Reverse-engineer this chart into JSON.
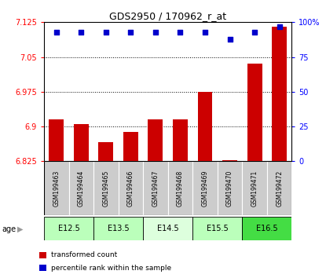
{
  "title": "GDS2950 / 170962_r_at",
  "samples": [
    "GSM199463",
    "GSM199464",
    "GSM199465",
    "GSM199466",
    "GSM199467",
    "GSM199468",
    "GSM199469",
    "GSM199470",
    "GSM199471",
    "GSM199472"
  ],
  "transformed_count": [
    6.916,
    6.906,
    6.866,
    6.888,
    6.916,
    6.916,
    6.975,
    6.827,
    7.035,
    7.115
  ],
  "percentile_rank": [
    93,
    93,
    93,
    93,
    93,
    93,
    93,
    88,
    93,
    97
  ],
  "ylim_left": [
    6.825,
    7.125
  ],
  "ylim_right": [
    0,
    100
  ],
  "yticks_left": [
    6.825,
    6.9,
    6.975,
    7.05,
    7.125
  ],
  "yticks_right": [
    0,
    25,
    50,
    75,
    100
  ],
  "age_groups": [
    {
      "label": "E12.5",
      "start": 0,
      "end": 1,
      "color": "#bbffbb"
    },
    {
      "label": "E13.5",
      "start": 2,
      "end": 3,
      "color": "#bbffbb"
    },
    {
      "label": "E14.5",
      "start": 4,
      "end": 5,
      "color": "#ddffdd"
    },
    {
      "label": "E15.5",
      "start": 6,
      "end": 7,
      "color": "#bbffbb"
    },
    {
      "label": "E16.5",
      "start": 8,
      "end": 9,
      "color": "#44dd44"
    }
  ],
  "bar_color": "#cc0000",
  "dot_color": "#0000cc",
  "sample_bg_color": "#cccccc",
  "age_label": "age",
  "legend_items": [
    {
      "color": "#cc0000",
      "label": "transformed count"
    },
    {
      "color": "#0000cc",
      "label": "percentile rank within the sample"
    }
  ]
}
